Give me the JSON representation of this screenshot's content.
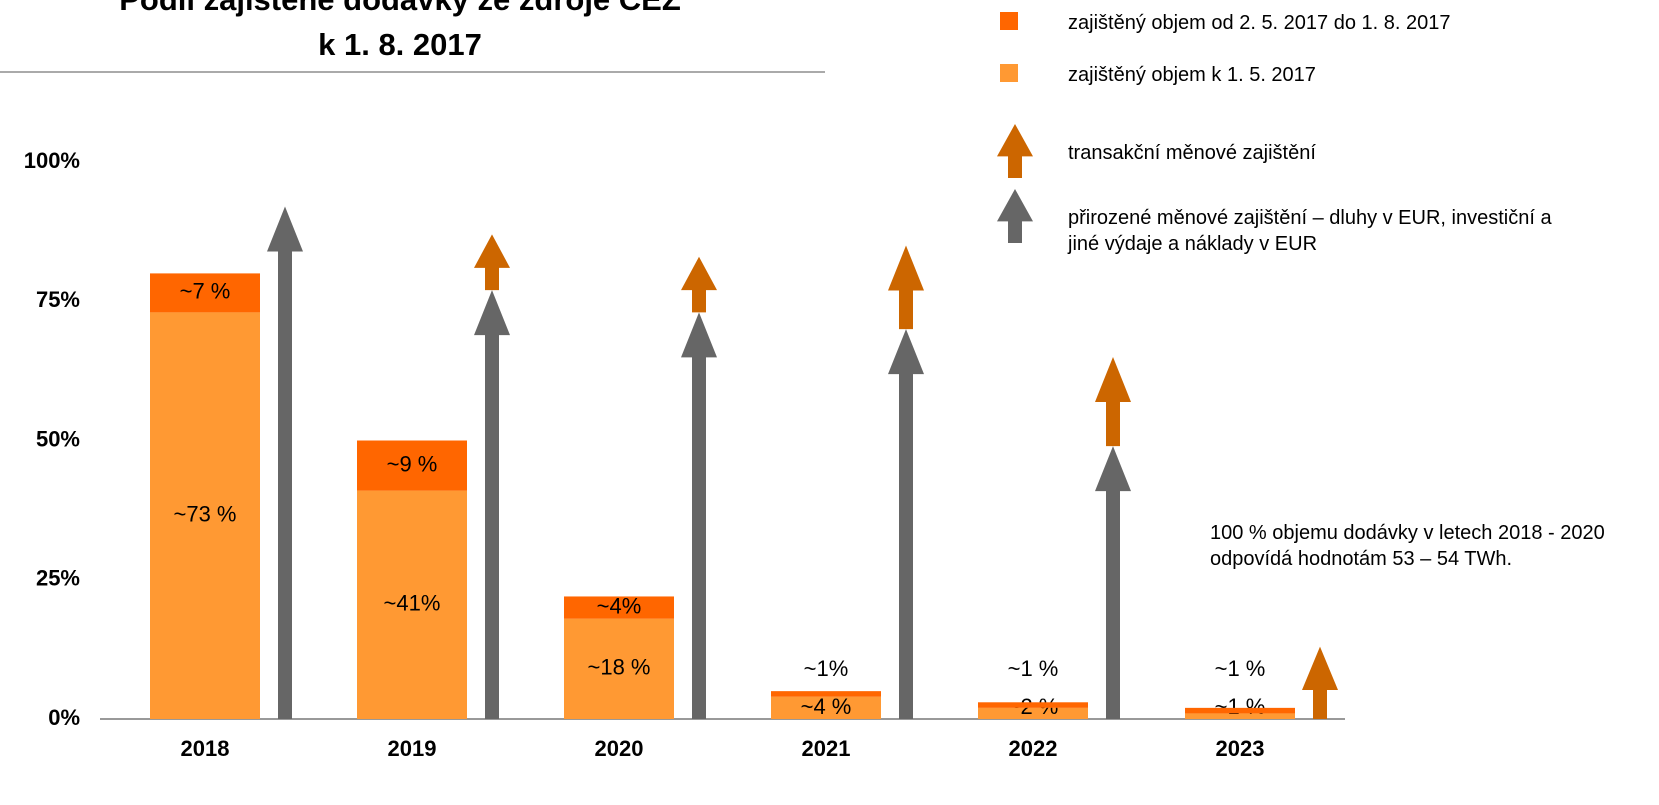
{
  "chart_data": {
    "type": "bar",
    "title_lines": [
      "Podíl zajištěné dodávky ze zdroje ČEZ",
      "k 1. 8. 2017"
    ],
    "categories": [
      "2018",
      "2019",
      "2020",
      "2021",
      "2022",
      "2023"
    ],
    "ylim": [
      0,
      100
    ],
    "yticks": [
      {
        "value": 0,
        "label": "0%"
      },
      {
        "value": 25,
        "label": "25%"
      },
      {
        "value": 50,
        "label": "50%"
      },
      {
        "value": 75,
        "label": "75%"
      },
      {
        "value": 100,
        "label": "100%"
      }
    ],
    "series": [
      {
        "name": "zajištěný objem k 1. 5. 2017",
        "color": "#ff9933",
        "values": [
          73,
          41,
          18,
          4,
          2,
          1
        ],
        "value_labels": [
          "~73 %",
          "~41%",
          "~18 %",
          "~4 %",
          "~2 %",
          "~1 %"
        ]
      },
      {
        "name": "zajištěný objem od 2. 5. 2017 do 1. 8. 2017",
        "color": "#ff6600",
        "values": [
          7,
          9,
          4,
          1,
          1,
          1
        ],
        "value_labels": [
          "~7 %",
          "~9 %",
          "~4%",
          "~1%",
          "~1 %",
          "~1 %"
        ]
      },
      {
        "name": "přirozené měnové zajištění – dluhy v EUR, investiční a jiné výdaje a náklady v EUR",
        "color": "#666666",
        "marker": "arrow",
        "values": [
          92,
          77,
          73,
          70,
          49,
          null
        ]
      },
      {
        "name": "transakční měnové zajištění",
        "color": "#cc6600",
        "marker": "arrow",
        "values": [
          null,
          10,
          10,
          15,
          16,
          13
        ]
      }
    ],
    "annotation": "100 % objemu dodávky v letech 2018 - 2020 odpovídá hodnotám 53 – 54 TWh."
  }
}
